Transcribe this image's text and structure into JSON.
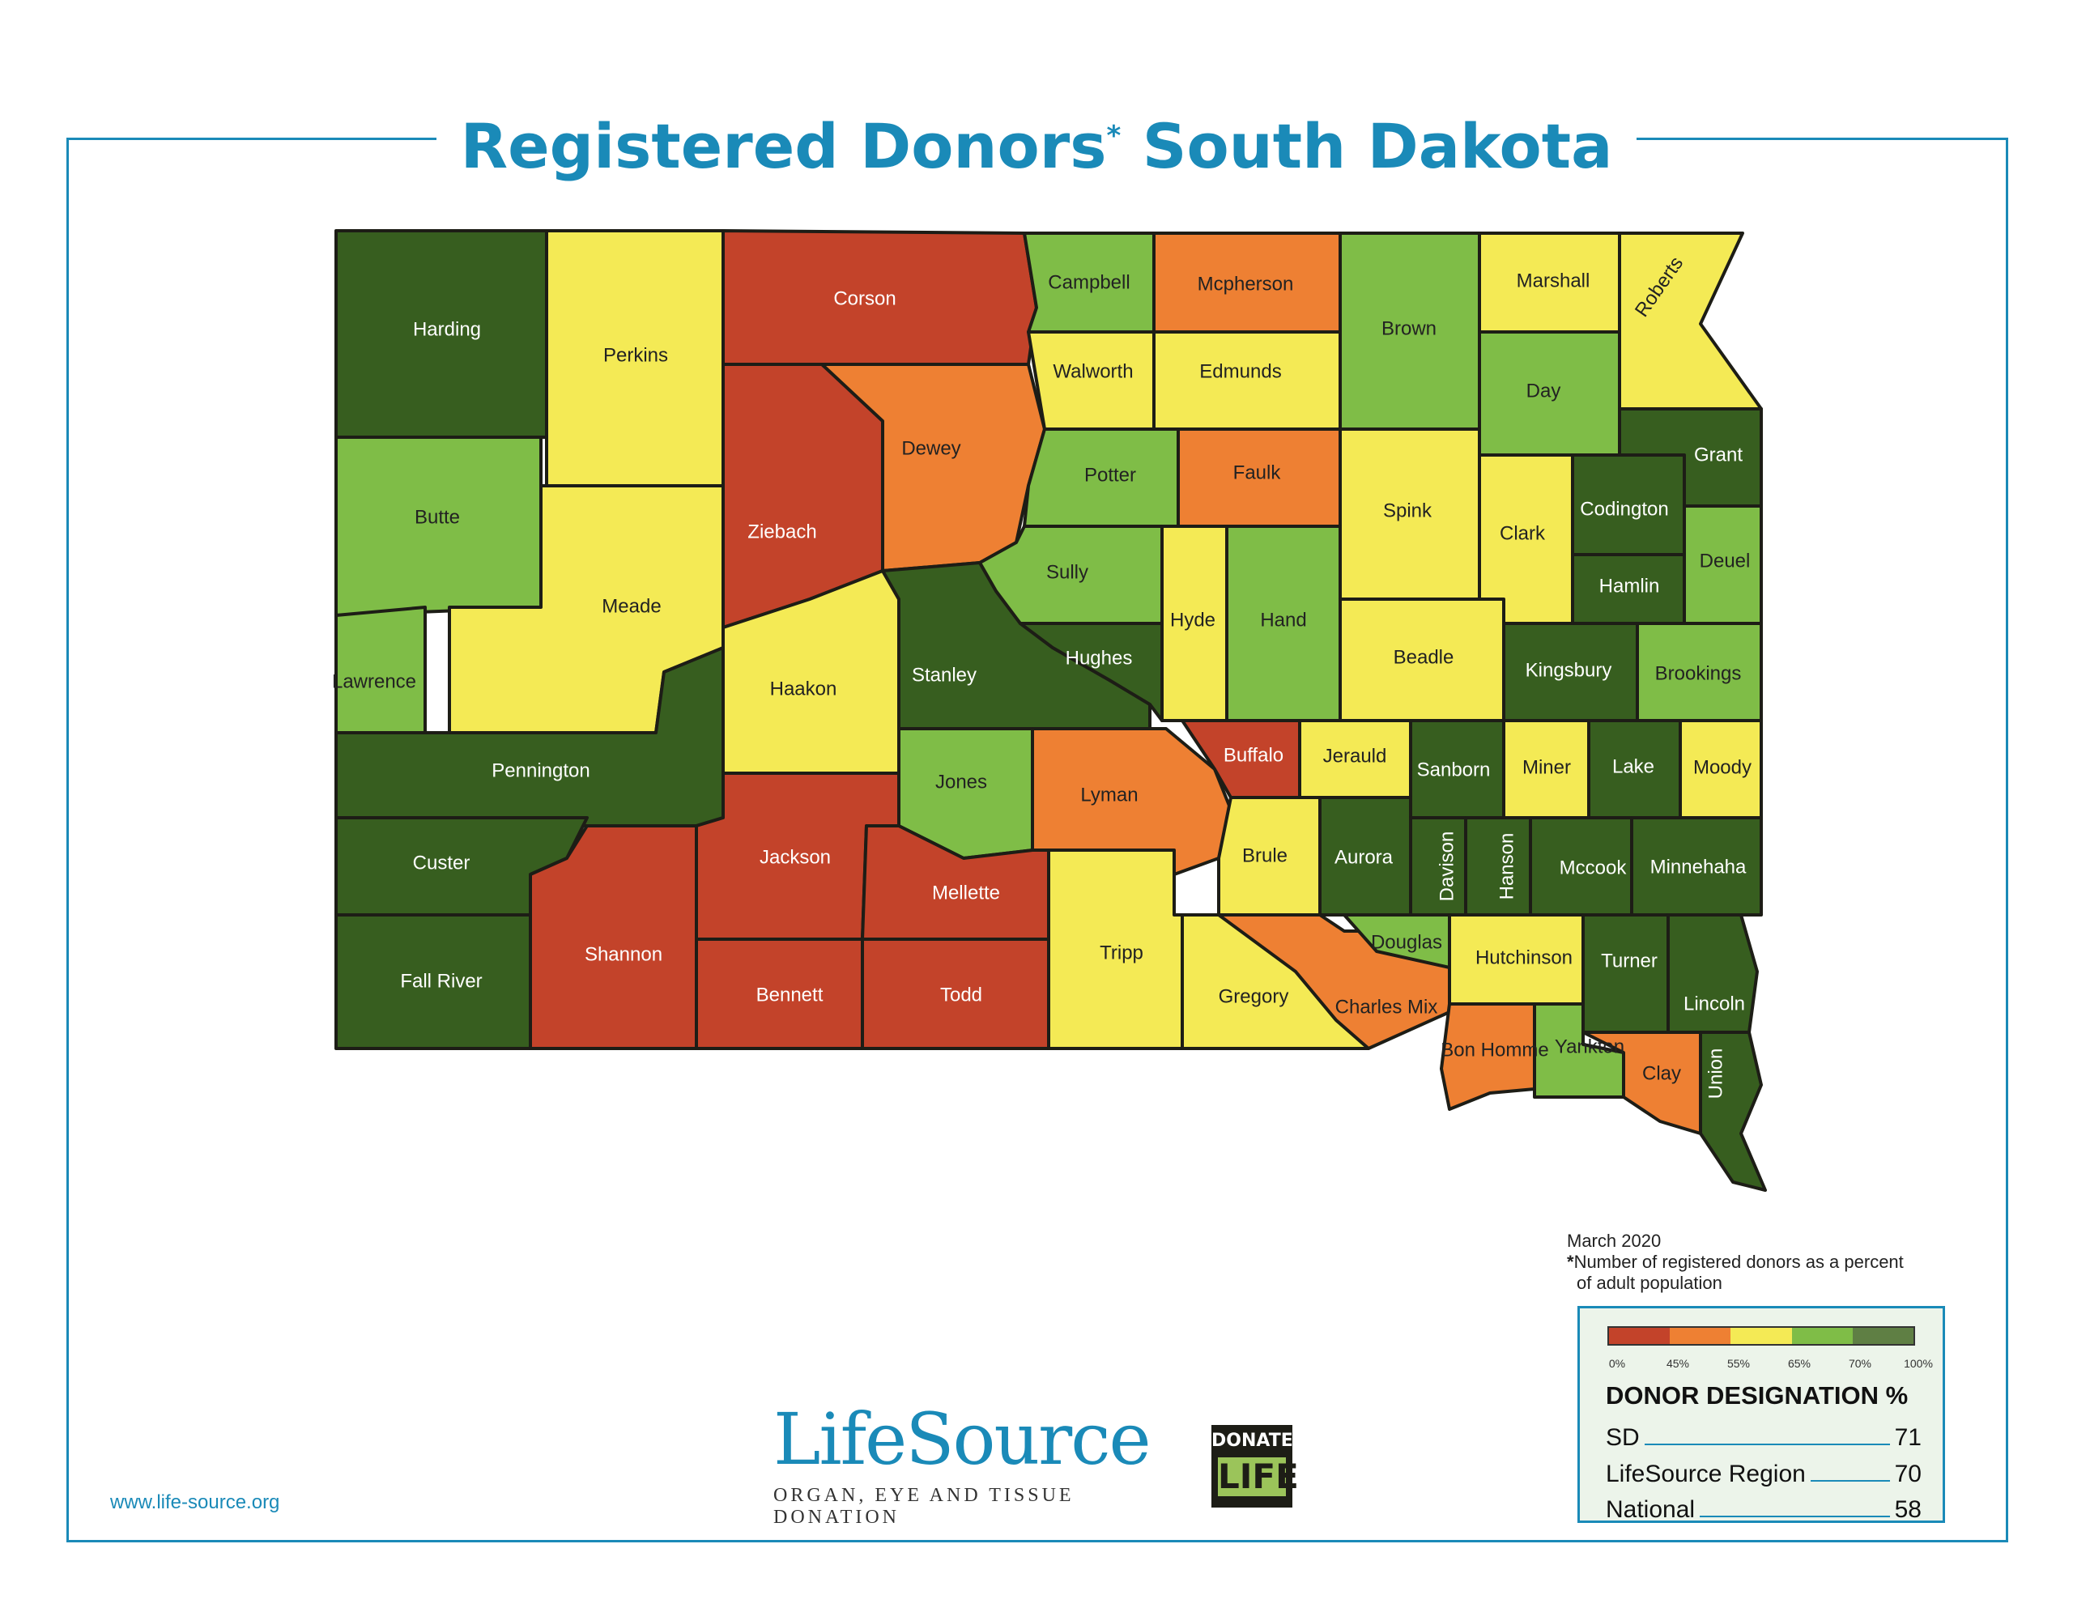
{
  "title": {
    "main": "Registered Donors",
    "asterisk": "*",
    "region": "South Dakota"
  },
  "colors": {
    "0-45": "#c3432a",
    "45-55": "#ee8033",
    "55-65": "#f4ea55",
    "65-70": "#7fbd47",
    "70-100": "#375e1f",
    "frame": "#1a8ab8"
  },
  "counties": [
    {
      "name": "Harding",
      "band": "70-100"
    },
    {
      "name": "Perkins",
      "band": "55-65"
    },
    {
      "name": "Corson",
      "band": "0-45"
    },
    {
      "name": "Campbell",
      "band": "65-70"
    },
    {
      "name": "Mcpherson",
      "band": "45-55"
    },
    {
      "name": "Brown",
      "band": "65-70"
    },
    {
      "name": "Marshall",
      "band": "55-65"
    },
    {
      "name": "Roberts",
      "band": "55-65"
    },
    {
      "name": "Butte",
      "band": "65-70"
    },
    {
      "name": "Meade",
      "band": "55-65"
    },
    {
      "name": "Ziebach",
      "band": "0-45"
    },
    {
      "name": "Dewey",
      "band": "45-55"
    },
    {
      "name": "Walworth",
      "band": "55-65"
    },
    {
      "name": "Edmunds",
      "band": "55-65"
    },
    {
      "name": "Day",
      "band": "65-70"
    },
    {
      "name": "Grant",
      "band": "70-100"
    },
    {
      "name": "Potter",
      "band": "65-70"
    },
    {
      "name": "Faulk",
      "band": "45-55"
    },
    {
      "name": "Spink",
      "band": "55-65"
    },
    {
      "name": "Clark",
      "band": "55-65"
    },
    {
      "name": "Codington",
      "band": "70-100"
    },
    {
      "name": "Deuel",
      "band": "65-70"
    },
    {
      "name": "Hamlin",
      "band": "70-100"
    },
    {
      "name": "Lawrence",
      "band": "65-70"
    },
    {
      "name": "Haakon",
      "band": "55-65"
    },
    {
      "name": "Stanley",
      "band": "70-100"
    },
    {
      "name": "Sully",
      "band": "65-70"
    },
    {
      "name": "Hughes",
      "band": "70-100"
    },
    {
      "name": "Hyde",
      "band": "55-65"
    },
    {
      "name": "Hand",
      "band": "65-70"
    },
    {
      "name": "Beadle",
      "band": "55-65"
    },
    {
      "name": "Kingsbury",
      "band": "70-100"
    },
    {
      "name": "Brookings",
      "band": "65-70"
    },
    {
      "name": "Pennington",
      "band": "70-100"
    },
    {
      "name": "Jones",
      "band": "65-70"
    },
    {
      "name": "Lyman",
      "band": "45-55"
    },
    {
      "name": "Buffalo",
      "band": "0-45"
    },
    {
      "name": "Jerauld",
      "band": "55-65"
    },
    {
      "name": "Sanborn",
      "band": "70-100"
    },
    {
      "name": "Miner",
      "band": "55-65"
    },
    {
      "name": "Lake",
      "band": "70-100"
    },
    {
      "name": "Moody",
      "band": "55-65"
    },
    {
      "name": "Custer",
      "band": "70-100"
    },
    {
      "name": "Jackson",
      "band": "0-45"
    },
    {
      "name": "Mellette",
      "band": "0-45"
    },
    {
      "name": "Brule",
      "band": "55-65"
    },
    {
      "name": "Aurora",
      "band": "70-100"
    },
    {
      "name": "Davison",
      "band": "70-100"
    },
    {
      "name": "Hanson",
      "band": "70-100"
    },
    {
      "name": "Mccook",
      "band": "70-100"
    },
    {
      "name": "Minnehaha",
      "band": "70-100"
    },
    {
      "name": "Fall River",
      "band": "70-100"
    },
    {
      "name": "Shannon",
      "band": "0-45"
    },
    {
      "name": "Bennett",
      "band": "0-45"
    },
    {
      "name": "Todd",
      "band": "0-45"
    },
    {
      "name": "Tripp",
      "band": "55-65"
    },
    {
      "name": "Gregory",
      "band": "55-65"
    },
    {
      "name": "Charles Mix",
      "band": "45-55"
    },
    {
      "name": "Douglas",
      "band": "65-70"
    },
    {
      "name": "Hutchinson",
      "band": "55-65"
    },
    {
      "name": "Turner",
      "band": "70-100"
    },
    {
      "name": "Lincoln",
      "band": "70-100"
    },
    {
      "name": "Bon Homme",
      "band": "45-55"
    },
    {
      "name": "Yankton",
      "band": "65-70"
    },
    {
      "name": "Clay",
      "band": "45-55"
    },
    {
      "name": "Union",
      "band": "70-100"
    }
  ],
  "notes": {
    "date": "March 2020",
    "asterisk": "*",
    "footnote_line1": "Number of registered donors as a percent",
    "footnote_line2": "of adult population"
  },
  "legend": {
    "ticks": [
      "0%",
      "45%",
      "55%",
      "65%",
      "70%",
      "100%"
    ],
    "title": "DONOR DESIGNATION %",
    "rows": [
      {
        "label": "SD",
        "value": "71"
      },
      {
        "label": "LifeSource Region",
        "value": "70"
      },
      {
        "label": "National",
        "value": "58"
      }
    ]
  },
  "footer": {
    "website": "www.life-source.org",
    "logo_word": "LifeSource",
    "logo_tagline": "ORGAN, EYE AND TISSUE DONATION",
    "badge_top": "DONATE",
    "badge_bottom": "LIFE"
  }
}
